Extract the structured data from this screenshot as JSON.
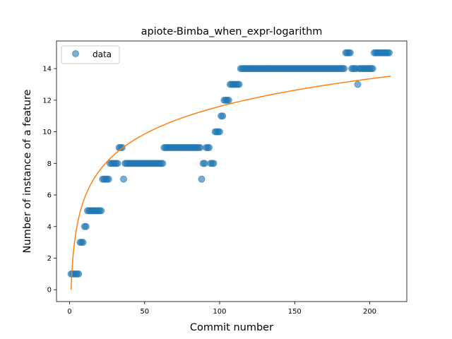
{
  "chart_data": {
    "type": "scatter",
    "title": "apiote-Bimba_when_expr-logarithm",
    "xlabel": "Commit number",
    "ylabel": "Number of instance of a feature",
    "xlim": [
      -8.7,
      224.7
    ],
    "ylim": [
      -0.75,
      15.75
    ],
    "x_ticks": [
      0,
      50,
      100,
      150,
      200
    ],
    "y_ticks": [
      0,
      2,
      4,
      6,
      8,
      10,
      12,
      14
    ],
    "grid": false,
    "legend": {
      "placement": "top-left",
      "entries": [
        "data"
      ]
    },
    "colors": {
      "points": "#1f77b4",
      "fit": "#ff7f0e"
    },
    "series": [
      {
        "name": "data",
        "style": "markers",
        "runs": [
          [
            1,
            6,
            1
          ],
          [
            7,
            9,
            3
          ],
          [
            10,
            11,
            4
          ],
          [
            12,
            21,
            5
          ],
          [
            22,
            26,
            7
          ],
          [
            27,
            32,
            8
          ],
          [
            33,
            35,
            9
          ],
          [
            36,
            36,
            7
          ],
          [
            37,
            62,
            8
          ],
          [
            63,
            87,
            9
          ],
          [
            88,
            88,
            7
          ],
          [
            89,
            90,
            8
          ],
          [
            91,
            93,
            9
          ],
          [
            94,
            96,
            8
          ],
          [
            97,
            100,
            10
          ],
          [
            101,
            102,
            11
          ],
          [
            103,
            106,
            12
          ],
          [
            107,
            113,
            13
          ],
          [
            114,
            183,
            14
          ],
          [
            184,
            187,
            15
          ],
          [
            188,
            191,
            14
          ],
          [
            192,
            192,
            13
          ],
          [
            193,
            202,
            14
          ],
          [
            203,
            213,
            15
          ]
        ]
      },
      {
        "name": "",
        "style": "line",
        "model": "a*ln(x)",
        "a": 2.52,
        "x_range": [
          1,
          214
        ]
      }
    ]
  }
}
